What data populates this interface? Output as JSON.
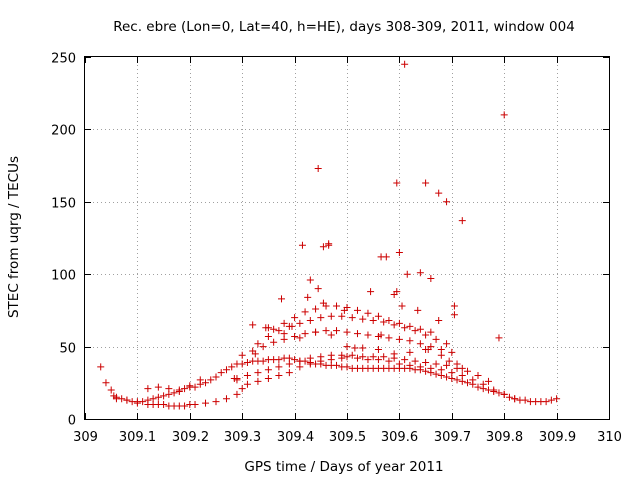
{
  "chart_data": {
    "type": "scatter",
    "title": "Rec. ebre (Lon=0, Lat=40, h=HE), days 308-309, 2011, window 004",
    "xlabel": "GPS time / Days of year 2011",
    "ylabel": "STEC from uqrg / TECUs",
    "xlim": [
      309,
      310
    ],
    "ylim": [
      0,
      250
    ],
    "xticks": [
      "309",
      "309.1",
      "309.2",
      "309.3",
      "309.4",
      "309.5",
      "309.6",
      "309.7",
      "309.8",
      "309.9",
      "310"
    ],
    "yticks": [
      "0",
      "50",
      "100",
      "150",
      "200",
      "250"
    ],
    "grid": true,
    "marker": "+",
    "marker_color": "#cc0000",
    "series": [
      {
        "x": [
          309.03,
          309.04,
          309.05,
          309.055,
          309.06,
          309.07,
          309.08,
          309.09,
          309.1,
          309.11,
          309.12,
          309.13,
          309.14,
          309.15,
          309.16,
          309.17,
          309.18,
          309.19,
          309.2,
          309.21,
          309.22,
          309.23,
          309.24,
          309.25,
          309.26,
          309.27,
          309.28,
          309.29,
          309.3,
          309.31,
          309.32,
          309.33,
          309.34,
          309.35,
          309.36,
          309.37,
          309.38,
          309.39,
          309.4,
          309.41,
          309.42,
          309.43,
          309.44,
          309.45,
          309.46,
          309.47,
          309.48,
          309.49,
          309.5,
          309.51,
          309.52,
          309.53,
          309.54,
          309.55,
          309.56,
          309.57,
          309.58,
          309.59,
          309.6,
          309.61,
          309.62,
          309.63,
          309.64,
          309.65,
          309.66,
          309.67,
          309.68,
          309.69,
          309.7,
          309.71,
          309.72,
          309.73,
          309.74,
          309.75,
          309.76,
          309.77,
          309.78,
          309.79,
          309.8,
          309.81,
          309.82,
          309.83,
          309.84,
          309.85,
          309.86,
          309.87,
          309.88,
          309.89,
          309.9,
          309.06,
          309.08,
          309.1,
          309.12,
          309.13,
          309.14,
          309.15,
          309.16,
          309.17,
          309.18,
          309.19,
          309.2,
          309.21,
          309.23,
          309.25,
          309.27,
          309.29,
          309.3,
          309.31,
          309.33,
          309.35,
          309.37,
          309.39,
          309.41,
          309.43,
          309.45,
          309.47,
          309.49,
          309.5,
          309.52,
          309.54,
          309.56,
          309.58,
          309.6,
          309.62,
          309.64,
          309.66,
          309.68,
          309.7,
          309.72,
          309.74,
          309.76,
          309.78,
          309.8,
          309.82,
          309.12,
          309.14,
          309.16,
          309.18,
          309.2,
          309.22,
          309.29,
          309.31,
          309.33,
          309.35,
          309.37,
          309.39,
          309.41,
          309.43,
          309.45,
          309.47,
          309.49,
          309.51,
          309.53,
          309.55,
          309.57,
          309.59,
          309.61,
          309.63,
          309.65,
          309.67,
          309.69,
          309.71,
          309.73,
          309.75,
          309.77,
          309.3,
          309.32,
          309.34,
          309.36,
          309.38,
          309.4,
          309.42,
          309.44,
          309.46,
          309.48,
          309.5,
          309.52,
          309.54,
          309.56,
          309.58,
          309.6,
          309.62,
          309.64,
          309.66,
          309.68,
          309.7,
          309.33,
          309.35,
          309.37,
          309.39,
          309.41,
          309.43,
          309.45,
          309.47,
          309.49,
          309.51,
          309.53,
          309.55,
          309.57,
          309.59,
          309.61,
          309.63,
          309.65,
          309.67,
          309.69,
          309.36,
          309.38,
          309.4,
          309.42,
          309.44,
          309.46,
          309.48,
          309.5,
          309.52,
          309.54,
          309.56,
          309.58,
          309.6,
          309.62,
          309.64,
          309.66,
          309.32,
          309.35,
          309.38,
          309.41,
          309.44,
          309.47,
          309.5,
          309.53,
          309.56,
          309.59,
          309.62,
          309.65,
          309.68,
          309.71,
          309.285,
          309.325,
          309.345,
          309.375,
          309.395,
          309.425,
          309.455,
          309.465,
          309.495,
          309.515,
          309.545,
          309.565,
          309.575,
          309.595,
          309.615,
          309.635,
          309.655,
          309.675,
          309.695,
          309.705,
          309.29,
          309.43,
          309.445,
          309.445,
          309.455,
          309.465,
          309.415,
          309.565,
          309.595,
          309.6,
          309.61,
          309.64,
          309.65,
          309.66,
          309.675,
          309.69,
          309.72,
          309.8,
          309.605,
          309.59,
          309.705,
          309.72,
          309.79
        ],
        "y": [
          36,
          25,
          20,
          16,
          15,
          14,
          13,
          12,
          12,
          12,
          13,
          14,
          15,
          16,
          17,
          18,
          19,
          21,
          23,
          22,
          24,
          25,
          27,
          29,
          32,
          34,
          36,
          38,
          38,
          39,
          40,
          40,
          40,
          41,
          41,
          41,
          42,
          42,
          41,
          40,
          40,
          39,
          38,
          38,
          37,
          37,
          37,
          36,
          36,
          35,
          35,
          35,
          35,
          35,
          35,
          35,
          35,
          35,
          35,
          35,
          35,
          34,
          34,
          33,
          32,
          31,
          30,
          29,
          28,
          27,
          26,
          25,
          24,
          22,
          21,
          20,
          19,
          18,
          17,
          15,
          14,
          13,
          13,
          12,
          12,
          12,
          12,
          13,
          14,
          14,
          13,
          11,
          10,
          10,
          10,
          10,
          9,
          9,
          9,
          9,
          10,
          10,
          11,
          12,
          14,
          17,
          21,
          24,
          26,
          28,
          30,
          32,
          36,
          38,
          40,
          41,
          42,
          43,
          42,
          41,
          41,
          40,
          38,
          37,
          36,
          35,
          34,
          32,
          30,
          27,
          24,
          20,
          17,
          14,
          21,
          22,
          21,
          20,
          22,
          27,
          28,
          30,
          32,
          34,
          36,
          38,
          40,
          42,
          43,
          44,
          44,
          44,
          43,
          43,
          43,
          42,
          41,
          40,
          39,
          38,
          37,
          35,
          33,
          30,
          26,
          44,
          47,
          50,
          53,
          55,
          57,
          59,
          60,
          61,
          61,
          60,
          59,
          58,
          57,
          56,
          55,
          54,
          52,
          50,
          48,
          46,
          52,
          57,
          61,
          64,
          66,
          68,
          70,
          71,
          71,
          70,
          69,
          68,
          67,
          65,
          63,
          61,
          58,
          55,
          52,
          62,
          66,
          70,
          74,
          76,
          78,
          78,
          77,
          75,
          73,
          71,
          68,
          66,
          64,
          62,
          60,
          65,
          63,
          59,
          56,
          60,
          58,
          50,
          49,
          48,
          45,
          46,
          48,
          44,
          38,
          28,
          45,
          63,
          83,
          64,
          84,
          80,
          120,
          75,
          49,
          88,
          58,
          112,
          88,
          100,
          75,
          48,
          68,
          40,
          78,
          27,
          96,
          173,
          90,
          119,
          121,
          120,
          112,
          163,
          115,
          245,
          101,
          163,
          97,
          156,
          150,
          137,
          210,
          78,
          86,
          72,
          35,
          56
        ]
      }
    ]
  }
}
